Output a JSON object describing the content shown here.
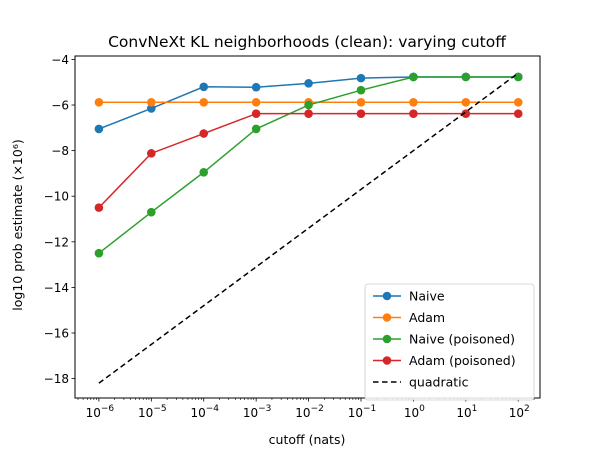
{
  "chart_data": {
    "type": "line",
    "title": "ConvNeXt KL neighborhoods (clean): varying cutoff",
    "xlabel": "cutoff (nats)",
    "ylabel": "log10 prob estimate (×10⁶)",
    "x_scale": "log",
    "x": [
      1e-06,
      1e-05,
      0.0001,
      0.001,
      0.01,
      0.1,
      1,
      10,
      100
    ],
    "x_tick_labels": [
      {
        "base": "10",
        "exp": "−6"
      },
      {
        "base": "10",
        "exp": "−5"
      },
      {
        "base": "10",
        "exp": "−4"
      },
      {
        "base": "10",
        "exp": "−3"
      },
      {
        "base": "10",
        "exp": "−2"
      },
      {
        "base": "10",
        "exp": "−1"
      },
      {
        "base": "10",
        "exp": "0"
      },
      {
        "base": "10",
        "exp": "1"
      },
      {
        "base": "10",
        "exp": "2"
      }
    ],
    "y_ticks": [
      -18,
      -16,
      -14,
      -12,
      -10,
      -8,
      -6,
      -4
    ],
    "y_tick_labels": [
      "−18",
      "−16",
      "−14",
      "−12",
      "−10",
      "−8",
      "−6",
      "−4"
    ],
    "xlim": [
      3.5e-07,
      260.0
    ],
    "ylim": [
      -18.85,
      -3.85
    ],
    "grid": false,
    "legend_position": "lower-right",
    "series": [
      {
        "name": "Naive",
        "color": "#1f77b4",
        "marker": "circle",
        "style": "solid",
        "values": [
          -7.05,
          -6.15,
          -5.2,
          -5.22,
          -5.05,
          -4.82,
          -4.77,
          -4.77,
          -4.77
        ]
      },
      {
        "name": "Adam",
        "color": "#ff7f0e",
        "marker": "circle",
        "style": "solid",
        "values": [
          -5.88,
          -5.88,
          -5.88,
          -5.88,
          -5.88,
          -5.88,
          -5.88,
          -5.88,
          -5.88
        ]
      },
      {
        "name": "Naive (poisoned)",
        "color": "#2ca02c",
        "marker": "circle",
        "style": "solid",
        "values": [
          -12.5,
          -10.7,
          -8.95,
          -7.05,
          -6.0,
          -5.35,
          -4.77,
          -4.77,
          -4.77
        ]
      },
      {
        "name": "Adam (poisoned)",
        "color": "#d62728",
        "marker": "circle",
        "style": "solid",
        "values": [
          -10.5,
          -8.12,
          -7.25,
          -6.38,
          -6.38,
          -6.38,
          -6.38,
          -6.38,
          -6.38
        ]
      },
      {
        "name": "quadratic",
        "color": "#000000",
        "marker": "none",
        "style": "dashed",
        "x": [
          1e-06,
          100
        ],
        "values": [
          -18.2,
          -4.6
        ]
      }
    ]
  }
}
